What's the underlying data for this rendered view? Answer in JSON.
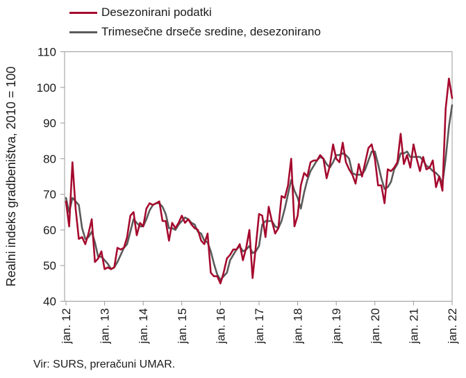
{
  "chart_data": {
    "type": "line",
    "ylabel": "Realni indeks gradbeništva, 2010 = 100",
    "ylim": [
      40,
      110
    ],
    "yticks": [
      40,
      50,
      60,
      70,
      80,
      90,
      100,
      110
    ],
    "xtick_labels": [
      "jan. 12",
      "jan. 13",
      "jan. 14",
      "jan. 15",
      "jan. 16",
      "jan. 17",
      "jan. 18",
      "jan. 19",
      "jan. 20",
      "jan. 21",
      "jan. 22"
    ],
    "x_start": "2012-01",
    "x_end": "2022-02",
    "grid": false,
    "legend_position": "top-left",
    "series": [
      {
        "name": "Desezonirani podatki",
        "color": "#a50a2e",
        "values": [
          68,
          61,
          79,
          66,
          57.5,
          58,
          56,
          59,
          63,
          51,
          52,
          54,
          49,
          49.5,
          49,
          49.5,
          55,
          54.5,
          55,
          58,
          64,
          65,
          58.5,
          62,
          61,
          66,
          67.5,
          67,
          67.5,
          68,
          62.5,
          62.5,
          57,
          62,
          60.5,
          62,
          64,
          62,
          63,
          61.5,
          60.5,
          60,
          57,
          56,
          59,
          48,
          47,
          47,
          45,
          48,
          52,
          53,
          54.5,
          54.5,
          56,
          51.5,
          55,
          60,
          46.5,
          55.5,
          64.5,
          64,
          58,
          66.5,
          62.5,
          59,
          60.5,
          69.5,
          69,
          72.5,
          80,
          61,
          64,
          72.5,
          76,
          75,
          79,
          79.5,
          79.5,
          81,
          80,
          74.5,
          78,
          84,
          80,
          79,
          84.5,
          79,
          77,
          75.5,
          73,
          78.5,
          75,
          79,
          83,
          84,
          80,
          72.5,
          72.5,
          67.5,
          77,
          76.5,
          77.5,
          79,
          87,
          78.5,
          81,
          77.5,
          84,
          80,
          76.5,
          80.5,
          77,
          77.5,
          79.5,
          72,
          75,
          71,
          94,
          102.5
        ],
        "last_value": 97
      },
      {
        "name": "Trimesečne drseče sredine, desezonirano",
        "color": "#5a5a5a",
        "values": [
          69,
          65,
          69,
          68,
          67,
          60.5,
          57.5,
          58,
          59.5,
          56.5,
          52.5,
          52.5,
          51.5,
          50.5,
          49,
          49.5,
          51,
          53,
          55,
          56,
          59.5,
          63,
          62,
          61,
          61,
          63,
          65.5,
          67,
          67.5,
          67.5,
          66.5,
          64.5,
          60.5,
          60.5,
          60,
          61.5,
          62.5,
          63.5,
          63,
          62,
          61.5,
          59.5,
          59,
          57,
          56.5,
          54,
          50.5,
          47.5,
          46,
          47,
          48,
          51.5,
          53,
          54.5,
          55.5,
          54,
          54.5,
          55.5,
          53.5,
          54,
          55.5,
          61.5,
          62.5,
          62.5,
          62.5,
          61,
          60.5,
          62.5,
          66,
          70,
          74,
          71,
          69,
          66,
          70.5,
          74,
          76.5,
          78,
          79.5,
          80.5,
          80,
          78.5,
          77.5,
          79,
          81,
          81,
          81.5,
          81,
          80,
          76,
          75.5,
          75.5,
          75.5,
          77,
          79.5,
          82,
          82,
          78.5,
          74.5,
          71.5,
          72,
          73.5,
          77,
          78.5,
          81.5,
          81.5,
          82,
          80.5,
          80.5,
          80.5,
          80.5,
          79.5,
          78,
          77.5,
          76.5,
          76,
          75,
          73,
          80,
          89
        ],
        "last_value": 95
      }
    ]
  },
  "source_note": "Vir: SURS, preračuni UMAR."
}
